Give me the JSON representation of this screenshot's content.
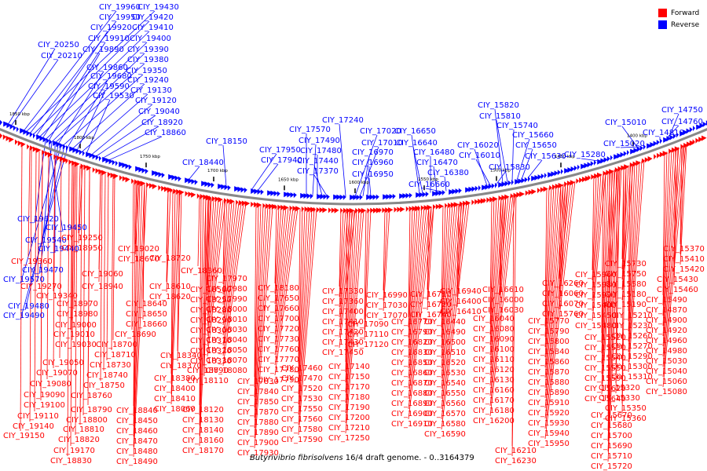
{
  "caption": {
    "organism": "Butyrivibrio fibrisolvens",
    "rest": " 16/4 draft genome. - 0..3164379"
  },
  "legend": {
    "forward_label": "Forward",
    "reverse_label": "Reverse",
    "forward_color": "#ff0000",
    "reverse_color": "#0000ff"
  },
  "colors": {
    "forward": "#ff0000",
    "reverse": "#0000ff",
    "backbone": "#888888"
  },
  "tick_labels": [
    "1850 kbp",
    "1800 kbp",
    "1750 kbp",
    "1700 kbp",
    "1650 kbp",
    "1600 kbp",
    "1550 kbp",
    "1500 kbp",
    "1450 kbp",
    "1400 kbp"
  ],
  "reverse_labels": [
    "CIY_19960",
    "CIY_19430",
    "CIY_19950",
    "CIY_19420",
    "CIY_19920",
    "CIY_19410",
    "CIY_19910",
    "CIY_19400",
    "CIY_19890",
    "CIY_19390",
    "CIY_20250",
    "CIY_20210",
    "CIY_19380",
    "CIY_19860",
    "CIY_19350",
    "CIY_19680",
    "CIY_19240",
    "CIY_19590",
    "CIY_19130",
    "CIY_19530",
    "CIY_19120",
    "CIY_19040",
    "CIY_18920",
    "CIY_18860",
    "CIY_18440",
    "CIY_18150",
    "CIY_17950",
    "CIY_17940",
    "CIY_17570",
    "CIY_17490",
    "CIY_17480",
    "CIY_17440",
    "CIY_17370",
    "CIY_17240",
    "CIY_17020",
    "CIY_17010",
    "CIY_16970",
    "CIY_16960",
    "CIY_16950",
    "CIY_16650",
    "CIY_16640",
    "CIY_16480",
    "CIY_16470",
    "CIY_16380",
    "CIY_16660",
    "CIY_16020",
    "CIY_16010",
    "CIY_15820",
    "CIY_15810",
    "CIY_15740",
    "CIY_15660",
    "CIY_15650",
    "CIY_15630",
    "CIY_15830",
    "CIY_15280",
    "CIY_15010",
    "CIY_15020",
    "CIY_14810",
    "CIY_14760",
    "CIY_14750",
    "CIY_19620",
    "CIY_19450",
    "CIY_19540",
    "CIY_19440",
    "CIY_19470",
    "CIY_19570",
    "CIY_19480",
    "CIY_19490"
  ],
  "forward_labels": [
    "CIY_19250",
    "CIY_18950",
    "CIY_19020",
    "CIY_18670",
    "CIY_18720",
    "CIY_19060",
    "CIY_18360",
    "CIY_19360",
    "CIY_19270",
    "CIY_18940",
    "CIY_18610",
    "CIY_18620",
    "CIY_19340",
    "CIY_18640",
    "CIY_18970",
    "CIY_18650",
    "CIY_18980",
    "CIY_18660",
    "CIY_19000",
    "CIY_18690",
    "CIY_19010",
    "CIY_18700",
    "CIY_19030",
    "CIY_18710",
    "CIY_19050",
    "CIY_18730",
    "CIY_19070",
    "CIY_18740",
    "CIY_19080",
    "CIY_18750",
    "CIY_19090",
    "CIY_18760",
    "CIY_19100",
    "CIY_18790",
    "CIY_19110",
    "CIY_18800",
    "CIY_19140",
    "CIY_18810",
    "CIY_19150",
    "CIY_18820",
    "CIY_19170",
    "CIY_18830",
    "CIY_18840",
    "CIY_18450",
    "CIY_18460",
    "CIY_18470",
    "CIY_18480",
    "CIY_18490",
    "CIY_18500",
    "CIY_18250",
    "CIY_18280",
    "CIY_18290",
    "CIY_18300",
    "CIY_18310",
    "CIY_18320",
    "CIY_18330",
    "CIY_18340",
    "CIY_18370",
    "CIY_18380",
    "CIY_18400",
    "CIY_18410",
    "CIY_18060",
    "CIY_17970",
    "CIY_17980",
    "CIY_17990",
    "CIY_18000",
    "CIY_18010",
    "CIY_18030",
    "CIY_18040",
    "CIY_18050",
    "CIY_18070",
    "CIY_18080",
    "CIY_18090",
    "CIY_18110",
    "CIY_18120",
    "CIY_18130",
    "CIY_18140",
    "CIY_18160",
    "CIY_18170",
    "CIY_18180",
    "CIY_17650",
    "CIY_17660",
    "CIY_17700",
    "CIY_17720",
    "CIY_17730",
    "CIY_17760",
    "CIY_17770",
    "CIY_17780",
    "CIY_17790",
    "CIY_17830",
    "CIY_17840",
    "CIY_17850",
    "CIY_17870",
    "CIY_17880",
    "CIY_17890",
    "CIY_17900",
    "CIY_17930",
    "CIY_17330",
    "CIY_17360",
    "CIY_17400",
    "CIY_17410",
    "CIY_17420",
    "CIY_17430",
    "CIY_17450",
    "CIY_17460",
    "CIY_17470",
    "CIY_17520",
    "CIY_17530",
    "CIY_17550",
    "CIY_17560",
    "CIY_17580",
    "CIY_17590",
    "CIY_16990",
    "CIY_17030",
    "CIY_17070",
    "CIY_17090",
    "CIY_17110",
    "CIY_17120",
    "CIY_17140",
    "CIY_17150",
    "CIY_17170",
    "CIY_17180",
    "CIY_17190",
    "CIY_17200",
    "CIY_17210",
    "CIY_17250",
    "CIY_16710",
    "CIY_16720",
    "CIY_16740",
    "CIY_16770",
    "CIY_16790",
    "CIY_16820",
    "CIY_16830",
    "CIY_16850",
    "CIY_16860",
    "CIY_16870",
    "CIY_16880",
    "CIY_16890",
    "CIY_16900",
    "CIY_16910",
    "CIY_16940",
    "CIY_16400",
    "CIY_16410",
    "CIY_16440",
    "CIY_16490",
    "CIY_16500",
    "CIY_16510",
    "CIY_16520",
    "CIY_16530",
    "CIY_16540",
    "CIY_16550",
    "CIY_16560",
    "CIY_16570",
    "CIY_16580",
    "CIY_16590",
    "CIY_16610",
    "CIY_16000",
    "CIY_16030",
    "CIY_16040",
    "CIY_16080",
    "CIY_16090",
    "CIY_16100",
    "CIY_16110",
    "CIY_16120",
    "CIY_16130",
    "CIY_16160",
    "CIY_16170",
    "CIY_16180",
    "CIY_16200",
    "CIY_16210",
    "CIY_16230",
    "CIY_16260",
    "CIY_16060",
    "CIY_16070",
    "CIY_15760",
    "CIY_15770",
    "CIY_15790",
    "CIY_15800",
    "CIY_15840",
    "CIY_15860",
    "CIY_15870",
    "CIY_15880",
    "CIY_15890",
    "CIY_15910",
    "CIY_15920",
    "CIY_15930",
    "CIY_15940",
    "CIY_15950",
    "CIY_15960",
    "CIY_15980",
    "CIY_15990",
    "CIY_15400",
    "CIY_15450",
    "CIY_15480",
    "CIY_15520",
    "CIY_15530",
    "CIY_15540",
    "CIY_15550",
    "CIY_15590",
    "CIY_15620",
    "CIY_15640",
    "CIY_15670",
    "CIY_15680",
    "CIY_15700",
    "CIY_15690",
    "CIY_15710",
    "CIY_15720",
    "CIY_15730",
    "CIY_15750",
    "CIY_15580",
    "CIY_15180",
    "CIY_15190",
    "CIY_15210",
    "CIY_15230",
    "CIY_15260",
    "CIY_15270",
    "CIY_15290",
    "CIY_15300",
    "CIY_15310",
    "CIY_15320",
    "CIY_15330",
    "CIY_15350",
    "CIY_15360",
    "CIY_15370",
    "CIY_15410",
    "CIY_15420",
    "CIY_15430",
    "CIY_15460",
    "CIY_15490",
    "CIY_14870",
    "CIY_14900",
    "CIY_14920",
    "CIY_14960",
    "CIY_14980",
    "CIY_15030",
    "CIY_15040",
    "CIY_15060",
    "CIY_15080",
    "CIY_15110",
    "CIY_15130",
    "CIY_15140",
    "CIY_15160",
    "CIY_15170",
    "CIY_15200",
    "CIY_15220",
    "CIY_15240"
  ]
}
